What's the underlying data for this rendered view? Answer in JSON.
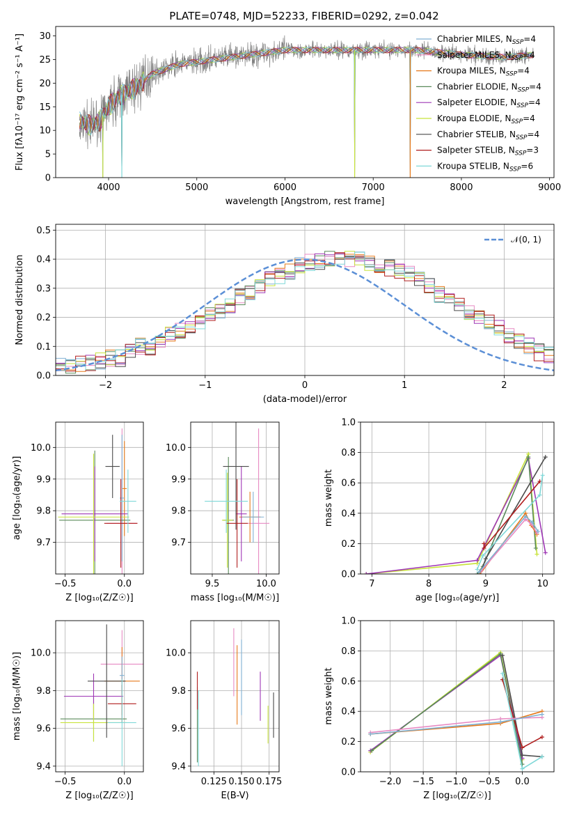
{
  "figure_title": "PLATE=0748, MJD=52233, FIBERID=0292, z=0.042",
  "colors": {
    "chabrier_miles": "#80b1d3",
    "salpeter_miles": "#e78ac3",
    "kroupa_miles": "#e6791a",
    "chabrier_elodie": "#5a8a5a",
    "salpeter_elodie": "#9e36b5",
    "kroupa_elodie": "#c8e33a",
    "chabrier_stelib": "#4a4a4a",
    "salpeter_stelib": "#b01d1d",
    "kroupa_stelib": "#7fd8d8",
    "data": "#808080",
    "normal": "#5b8fd6",
    "grid": "#b0b0b0"
  },
  "legend_spectrum": [
    {
      "label": "Chabrier MILES, N",
      "sub": "SSP",
      "suffix": "=4",
      "color_key": "chabrier_miles"
    },
    {
      "label": "Salpeter MILES, N",
      "sub": "SSP",
      "suffix": "=4",
      "color_key": "salpeter_miles"
    },
    {
      "label": "Kroupa MILES, N",
      "sub": "SSP",
      "suffix": "=4",
      "color_key": "kroupa_miles"
    },
    {
      "label": "Chabrier ELODIE, N",
      "sub": "SSP",
      "suffix": "=4",
      "color_key": "chabrier_elodie"
    },
    {
      "label": "Salpeter ELODIE, N",
      "sub": "SSP",
      "suffix": "=4",
      "color_key": "salpeter_elodie"
    },
    {
      "label": "Kroupa ELODIE, N",
      "sub": "SSP",
      "suffix": "=4",
      "color_key": "kroupa_elodie"
    },
    {
      "label": "Chabrier STELIB, N",
      "sub": "SSP",
      "suffix": "=4",
      "color_key": "chabrier_stelib"
    },
    {
      "label": "Salpeter STELIB, N",
      "sub": "SSP",
      "suffix": "=3",
      "color_key": "salpeter_stelib"
    },
    {
      "label": "Kroupa STELIB, N",
      "sub": "SSP",
      "suffix": "=6",
      "color_key": "kroupa_stelib"
    }
  ],
  "legend_normal": "𝒩(0, 1)",
  "chart_data": [
    {
      "id": "spectrum",
      "type": "line",
      "xlabel": "wavelength [Angstrom, rest frame]",
      "ylabel": "Flux [fλ10⁻¹⁷ erg cm⁻² s⁻¹ A⁻¹]",
      "xlim": [
        3400,
        9050
      ],
      "ylim": [
        0,
        32
      ],
      "xticks": [
        4000,
        5000,
        6000,
        7000,
        8000,
        9000
      ],
      "yticks": [
        0,
        5,
        10,
        15,
        20,
        25,
        30
      ],
      "grid": false,
      "legend": "top-right",
      "data_x_range": [
        3670,
        8820
      ],
      "continuum": [
        {
          "x": 3670,
          "y": 12
        },
        {
          "x": 3800,
          "y": 11
        },
        {
          "x": 3900,
          "y": 12
        },
        {
          "x": 4000,
          "y": 15
        },
        {
          "x": 4100,
          "y": 17
        },
        {
          "x": 4300,
          "y": 19
        },
        {
          "x": 4500,
          "y": 22
        },
        {
          "x": 4800,
          "y": 24
        },
        {
          "x": 5200,
          "y": 25
        },
        {
          "x": 5600,
          "y": 26
        },
        {
          "x": 6000,
          "y": 27
        },
        {
          "x": 6500,
          "y": 27
        },
        {
          "x": 7000,
          "y": 27
        },
        {
          "x": 7500,
          "y": 27
        },
        {
          "x": 8000,
          "y": 26
        },
        {
          "x": 8500,
          "y": 25.5
        },
        {
          "x": 8820,
          "y": 26
        }
      ],
      "model_dips": [
        {
          "x": 3935,
          "y": 0
        },
        {
          "x": 4150,
          "y": 0
        },
        {
          "x": 6790,
          "y": 0
        },
        {
          "x": 7420,
          "y": 0
        }
      ]
    },
    {
      "id": "residuals",
      "type": "histogram",
      "xlabel": "(data-model)/error",
      "ylabel": "Normed distribution",
      "xlim": [
        -2.5,
        2.5
      ],
      "ylim": [
        0,
        0.52
      ],
      "xticks": [
        -2,
        -1,
        0,
        1,
        2
      ],
      "yticks": [
        0.0,
        0.1,
        0.2,
        0.3,
        0.4,
        0.5
      ],
      "grid": true,
      "legend": "top-right",
      "bin_width": 0.1,
      "bin_start": -2.5,
      "reference_series": [
        0.03,
        0.03,
        0.04,
        0.04,
        0.05,
        0.06,
        0.06,
        0.08,
        0.1,
        0.1,
        0.12,
        0.14,
        0.15,
        0.17,
        0.19,
        0.21,
        0.22,
        0.24,
        0.27,
        0.28,
        0.3,
        0.33,
        0.34,
        0.36,
        0.38,
        0.39,
        0.39,
        0.4,
        0.41,
        0.4,
        0.4,
        0.39,
        0.38,
        0.37,
        0.36,
        0.35,
        0.33,
        0.31,
        0.28,
        0.26,
        0.24,
        0.22,
        0.2,
        0.18,
        0.16,
        0.14,
        0.12,
        0.1,
        0.08,
        0.07,
        0.02
      ]
    },
    {
      "id": "age-vs-Z",
      "type": "errorbar",
      "xlabel": "Z [log₁₀(Z/Z☉)]",
      "ylabel": "age  [log₁₀(age/yr)]",
      "xlim": [
        -0.58,
        0.16
      ],
      "ylim": [
        9.6,
        10.08
      ],
      "xticks": [
        -0.5,
        0.0
      ],
      "yticks": [
        9.7,
        9.8,
        9.9,
        10.0
      ],
      "grid": true,
      "points": [
        {
          "color_key": "salpeter_miles",
          "x": -0.02,
          "xerr": 0.13,
          "y": 9.76,
          "yerr": 0.3
        },
        {
          "color_key": "kroupa_miles",
          "x": 0.0,
          "xerr": 0.02,
          "y": 9.87,
          "yerr": 0.15
        },
        {
          "color_key": "chabrier_miles",
          "x": -0.02,
          "xerr": 0.02,
          "y": 9.84,
          "yerr": 0.2
        },
        {
          "color_key": "chabrier_elodie",
          "x": -0.25,
          "xerr": 0.3,
          "y": 9.77,
          "yerr": 0.22
        },
        {
          "color_key": "salpeter_elodie",
          "x": -0.25,
          "xerr": 0.28,
          "y": 9.79,
          "yerr": 0.15
        },
        {
          "color_key": "kroupa_elodie",
          "x": -0.26,
          "xerr": 0.3,
          "y": 9.78,
          "yerr": 0.2
        },
        {
          "color_key": "chabrier_stelib",
          "x": -0.1,
          "xerr": 0.06,
          "y": 9.94,
          "yerr": 0.1
        },
        {
          "color_key": "salpeter_stelib",
          "x": -0.03,
          "xerr": 0.14,
          "y": 9.76,
          "yerr": 0.14
        },
        {
          "color_key": "kroupa_stelib",
          "x": 0.03,
          "xerr": 0.07,
          "y": 9.83,
          "yerr": 0.1
        }
      ]
    },
    {
      "id": "age-vs-mass",
      "type": "errorbar",
      "xlabel": "mass [log₁₀(M/M☉)]",
      "ylabel": "",
      "xlim": [
        9.3,
        10.12
      ],
      "ylim": [
        9.6,
        10.08
      ],
      "xticks": [
        9.5,
        10.0
      ],
      "yticks": [
        9.7,
        9.8,
        9.9,
        10.0
      ],
      "grid": true,
      "points": [
        {
          "color_key": "salpeter_miles",
          "x": 9.93,
          "xerr": 0.1,
          "y": 9.76,
          "yerr": 0.3
        },
        {
          "color_key": "kroupa_miles",
          "x": 9.85,
          "xerr": 0.1,
          "y": 9.78,
          "yerr": 0.08
        },
        {
          "color_key": "chabrier_miles",
          "x": 9.88,
          "xerr": 0.1,
          "y": 9.78,
          "yerr": 0.08
        },
        {
          "color_key": "chabrier_elodie",
          "x": 9.65,
          "xerr": 0.05,
          "y": 9.77,
          "yerr": 0.2
        },
        {
          "color_key": "salpeter_elodie",
          "x": 9.77,
          "xerr": 0.05,
          "y": 9.79,
          "yerr": 0.15
        },
        {
          "color_key": "kroupa_elodie",
          "x": 9.64,
          "xerr": 0.05,
          "y": 9.77,
          "yerr": 0.15
        },
        {
          "color_key": "chabrier_stelib",
          "x": 9.72,
          "xerr": 0.12,
          "y": 9.94,
          "yerr": 0.2
        },
        {
          "color_key": "salpeter_stelib",
          "x": 9.73,
          "xerr": 0.1,
          "y": 9.76,
          "yerr": 0.14
        },
        {
          "color_key": "kroupa_stelib",
          "x": 9.63,
          "xerr": 0.2,
          "y": 9.83,
          "yerr": 0.1
        }
      ]
    },
    {
      "id": "massweight-vs-age",
      "type": "line",
      "xlabel": "age  [log₁₀(age/yr)]",
      "ylabel": "mass weight",
      "xlim": [
        6.8,
        10.2
      ],
      "ylim": [
        0,
        1.0
      ],
      "xticks": [
        7,
        8,
        9,
        10
      ],
      "yticks": [
        0.0,
        0.2,
        0.4,
        0.6,
        0.8,
        1.0
      ],
      "grid": true,
      "series": [
        {
          "color_key": "kroupa_elodie",
          "x": [
            6.9,
            8.85,
            9.75,
            9.9
          ],
          "y": [
            0.0,
            0.07,
            0.79,
            0.13
          ]
        },
        {
          "color_key": "salpeter_elodie",
          "x": [
            6.9,
            8.85,
            9.75,
            10.05
          ],
          "y": [
            0.0,
            0.09,
            0.76,
            0.14
          ]
        },
        {
          "color_key": "chabrier_elodie",
          "x": [
            8.85,
            8.95,
            9.75,
            9.88
          ],
          "y": [
            0.0,
            0.05,
            0.77,
            0.17
          ]
        },
        {
          "color_key": "chabrier_stelib",
          "x": [
            8.9,
            9.0,
            10.05
          ],
          "y": [
            0.0,
            0.1,
            0.77
          ]
        },
        {
          "color_key": "salpeter_stelib",
          "x": [
            8.97,
            8.97,
            9.95
          ],
          "y": [
            0.2,
            0.17,
            0.61
          ]
        },
        {
          "color_key": "kroupa_stelib",
          "x": [
            8.85,
            8.95,
            9.95,
            10.0
          ],
          "y": [
            0.03,
            0.12,
            0.52,
            0.65
          ]
        },
        {
          "color_key": "kroupa_miles",
          "x": [
            8.9,
            9.7,
            9.8,
            9.9
          ],
          "y": [
            0.0,
            0.4,
            0.32,
            0.26
          ]
        },
        {
          "color_key": "salpeter_miles",
          "x": [
            8.92,
            9.7,
            9.8,
            9.9
          ],
          "y": [
            0.02,
            0.36,
            0.33,
            0.27
          ]
        },
        {
          "color_key": "chabrier_miles",
          "x": [
            8.88,
            9.7,
            9.82,
            9.92
          ],
          "y": [
            0.01,
            0.38,
            0.34,
            0.28
          ]
        }
      ]
    },
    {
      "id": "mass-vs-Z",
      "type": "errorbar",
      "xlabel": "Z [log₁₀(Z/Z☉)]",
      "ylabel": "mass [log₁₀(M/M☉)]",
      "xlim": [
        -0.58,
        0.16
      ],
      "ylim": [
        9.37,
        10.17
      ],
      "xticks": [
        -0.5,
        0.0
      ],
      "yticks": [
        9.4,
        9.6,
        9.8,
        10.0
      ],
      "grid": true,
      "points": [
        {
          "color_key": "salpeter_miles",
          "x": -0.02,
          "xerr": 0.18,
          "y": 9.94,
          "yerr": 0.18
        },
        {
          "color_key": "kroupa_miles",
          "x": -0.02,
          "xerr": 0.15,
          "y": 9.85,
          "yerr": 0.18
        },
        {
          "color_key": "chabrier_miles",
          "x": -0.02,
          "xerr": 0.02,
          "y": 9.88,
          "yerr": 0.1
        },
        {
          "color_key": "chabrier_elodie",
          "x": -0.26,
          "xerr": 0.28,
          "y": 9.65,
          "yerr": 0.12
        },
        {
          "color_key": "salpeter_elodie",
          "x": -0.26,
          "xerr": 0.25,
          "y": 9.77,
          "yerr": 0.12
        },
        {
          "color_key": "kroupa_elodie",
          "x": -0.26,
          "xerr": 0.28,
          "y": 9.63,
          "yerr": 0.1
        },
        {
          "color_key": "chabrier_stelib",
          "x": -0.15,
          "xerr": 0.16,
          "y": 9.85,
          "yerr": 0.3
        },
        {
          "color_key": "salpeter_stelib",
          "x": -0.02,
          "xerr": 0.12,
          "y": 9.73,
          "yerr": 0.1
        },
        {
          "color_key": "kroupa_stelib",
          "x": -0.02,
          "xerr": 0.12,
          "y": 9.63,
          "yerr": 0.23
        }
      ]
    },
    {
      "id": "mass-vs-EBV",
      "type": "errorbar",
      "xlabel": "E(B-V)",
      "ylabel": "",
      "xlim": [
        0.104,
        0.184
      ],
      "ylim": [
        9.37,
        10.17
      ],
      "xticks": [
        0.125,
        0.15,
        0.175
      ],
      "yticks": [
        9.4,
        9.6,
        9.8,
        10.0
      ],
      "grid": true,
      "points": [
        {
          "color_key": "salpeter_miles",
          "x": 0.143,
          "xerr": 0,
          "y": 9.95,
          "yerr": 0.18
        },
        {
          "color_key": "kroupa_miles",
          "x": 0.146,
          "xerr": 0,
          "y": 9.83,
          "yerr": 0.21
        },
        {
          "color_key": "chabrier_miles",
          "x": 0.15,
          "xerr": 0,
          "y": 9.87,
          "yerr": 0.2
        },
        {
          "color_key": "chabrier_elodie",
          "x": 0.11,
          "xerr": 0,
          "y": 9.62,
          "yerr": 0.2
        },
        {
          "color_key": "salpeter_elodie",
          "x": 0.167,
          "xerr": 0,
          "y": 9.77,
          "yerr": 0.13
        },
        {
          "color_key": "kroupa_elodie",
          "x": 0.174,
          "xerr": 0,
          "y": 9.62,
          "yerr": 0.1
        },
        {
          "color_key": "chabrier_stelib",
          "x": 0.179,
          "xerr": 0,
          "y": 9.67,
          "yerr": 0.12
        },
        {
          "color_key": "salpeter_stelib",
          "x": 0.11,
          "xerr": 0,
          "y": 9.8,
          "yerr": 0.1
        },
        {
          "color_key": "kroupa_stelib",
          "x": 0.111,
          "xerr": 0,
          "y": 9.6,
          "yerr": 0.2
        }
      ]
    },
    {
      "id": "massweight-vs-Z",
      "type": "line",
      "xlabel": "Z [log₁₀(Z/Z☉)]",
      "ylabel": "mass weight",
      "xlim": [
        -2.45,
        0.48
      ],
      "ylim": [
        0,
        1.0
      ],
      "xticks": [
        -2.0,
        -1.5,
        -1.0,
        -0.5,
        0.0
      ],
      "yticks": [
        0.0,
        0.2,
        0.4,
        0.6,
        0.8,
        1.0
      ],
      "grid": true,
      "series": [
        {
          "color_key": "kroupa_elodie",
          "x": [
            -2.3,
            -0.33,
            0.0
          ],
          "y": [
            0.13,
            0.79,
            0.08
          ]
        },
        {
          "color_key": "salpeter_elodie",
          "x": [
            -2.3,
            -0.33,
            0.0
          ],
          "y": [
            0.14,
            0.77,
            0.09
          ]
        },
        {
          "color_key": "chabrier_elodie",
          "x": [
            -2.28,
            -0.33,
            0.0
          ],
          "y": [
            0.14,
            0.78,
            0.05
          ]
        },
        {
          "color_key": "chabrier_stelib",
          "x": [
            -0.3,
            0.0,
            0.3
          ],
          "y": [
            0.77,
            0.11,
            0.1
          ]
        },
        {
          "color_key": "salpeter_stelib",
          "x": [
            -0.3,
            0.0,
            0.3
          ],
          "y": [
            0.61,
            0.16,
            0.23
          ]
        },
        {
          "color_key": "kroupa_stelib",
          "x": [
            -0.3,
            0.0,
            0.3
          ],
          "y": [
            0.65,
            0.02,
            0.1
          ]
        },
        {
          "color_key": "kroupa_miles",
          "x": [
            -2.3,
            -0.33,
            0.3
          ],
          "y": [
            0.25,
            0.32,
            0.4
          ]
        },
        {
          "color_key": "salpeter_miles",
          "x": [
            -2.3,
            -0.33,
            0.3
          ],
          "y": [
            0.26,
            0.35,
            0.36
          ]
        },
        {
          "color_key": "chabrier_miles",
          "x": [
            -2.3,
            -0.33,
            0.3
          ],
          "y": [
            0.25,
            0.33,
            0.38
          ]
        }
      ]
    }
  ]
}
